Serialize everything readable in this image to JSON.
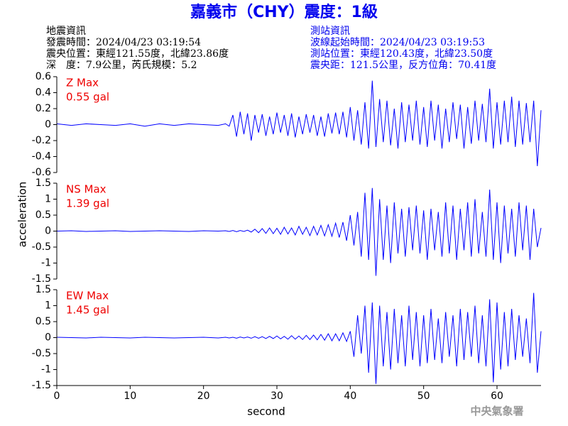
{
  "chart_data": {
    "type": "line",
    "title": "嘉義市（CHY）震度：1級",
    "info_left": [
      "地震資訊",
      "發震時間：2024/04/23 03:19:54",
      "震央位置：東經121.55度，北緯23.86度",
      "深　度：7.9公里，芮氏規模：5.2"
    ],
    "info_right": [
      "測站資訊",
      "波線起始時間：2024/04/23 03:19:53",
      "測站位置：東經120.43度，北緯23.50度",
      "震央距：121.5公里，反方位角：70.41度"
    ],
    "xlabel": "second",
    "ylabel": "acceleration",
    "credit": "中央氣象署",
    "xlim": [
      0,
      66
    ],
    "xticks": [
      0,
      10,
      20,
      30,
      40,
      50,
      60
    ],
    "x": [
      0,
      2,
      4,
      6,
      8,
      10,
      12,
      14,
      16,
      18,
      20,
      22,
      23,
      23.5,
      24,
      24.5,
      25,
      25.5,
      26,
      26.5,
      27,
      27.5,
      28,
      28.5,
      29,
      29.5,
      30,
      30.5,
      31,
      31.5,
      32,
      32.5,
      33,
      33.5,
      34,
      34.5,
      35,
      35.5,
      36,
      36.5,
      37,
      37.5,
      38,
      38.5,
      39,
      39.5,
      40,
      40.5,
      41,
      41.5,
      42,
      42.5,
      43,
      43.5,
      44,
      44.5,
      45,
      45.5,
      46,
      46.5,
      47,
      47.5,
      48,
      48.5,
      49,
      49.5,
      50,
      50.5,
      51,
      51.5,
      52,
      52.5,
      53,
      53.5,
      54,
      54.5,
      55,
      55.5,
      56,
      56.5,
      57,
      57.5,
      58,
      58.5,
      59,
      59.5,
      60,
      60.5,
      61,
      61.5,
      62,
      62.5,
      63,
      63.5,
      64,
      64.5,
      65,
      65.5,
      66
    ],
    "series": [
      {
        "name": "Z Max",
        "max_label": "0.55 gal",
        "color": "#0000ff",
        "label_color": "#ee0000",
        "ylim": [
          -0.6,
          0.6
        ],
        "yticks": [
          0.6,
          0.4,
          0.2,
          0,
          -0.2,
          -0.4,
          -0.6
        ],
        "values": [
          0.01,
          -0.01,
          0.01,
          0,
          -0.01,
          0.01,
          -0.02,
          0.01,
          -0.01,
          0.01,
          0,
          -0.01,
          0.01,
          -0.02,
          0.12,
          -0.15,
          0.16,
          -0.12,
          0.14,
          -0.2,
          0.12,
          -0.1,
          0.13,
          -0.14,
          0.1,
          -0.12,
          0.15,
          -0.1,
          0.12,
          -0.14,
          0.14,
          -0.16,
          0.1,
          -0.12,
          0.13,
          -0.1,
          0.12,
          -0.14,
          0.1,
          -0.15,
          0.14,
          -0.11,
          0.15,
          -0.12,
          0.16,
          -0.16,
          0.22,
          -0.2,
          0.18,
          -0.25,
          0.28,
          -0.3,
          0.55,
          -0.28,
          0.32,
          -0.22,
          0.3,
          -0.26,
          0.2,
          -0.3,
          0.28,
          -0.22,
          0.25,
          -0.2,
          0.3,
          -0.25,
          0.22,
          -0.28,
          0.3,
          -0.2,
          0.25,
          -0.3,
          0.2,
          -0.22,
          0.28,
          -0.18,
          0.25,
          -0.3,
          0.22,
          -0.24,
          0.3,
          -0.2,
          0.26,
          -0.22,
          0.45,
          -0.3,
          0.28,
          -0.25,
          0.3,
          -0.22,
          0.35,
          -0.28,
          0.3,
          -0.25,
          0.27,
          -0.22,
          0.3,
          -0.52,
          0.18
        ]
      },
      {
        "name": "NS Max",
        "max_label": "1.39 gal",
        "color": "#0000ff",
        "label_color": "#ee0000",
        "ylim": [
          -1.5,
          1.5
        ],
        "yticks": [
          1.5,
          1,
          0.5,
          0,
          -0.5,
          -1,
          -1.5
        ],
        "values": [
          0,
          0.01,
          -0.01,
          0,
          0.01,
          -0.01,
          0,
          0.01,
          0,
          -0.01,
          0.01,
          0,
          0.01,
          -0.01,
          0.02,
          -0.02,
          0.02,
          -0.01,
          0.03,
          -0.03,
          0.06,
          -0.05,
          0.08,
          -0.07,
          0.1,
          -0.08,
          0.09,
          -0.1,
          0.12,
          -0.09,
          0.1,
          -0.12,
          0.15,
          -0.1,
          0.12,
          -0.14,
          0.15,
          -0.12,
          0.18,
          -0.15,
          0.2,
          -0.16,
          0.25,
          -0.2,
          0.28,
          -0.3,
          0.5,
          -0.45,
          0.6,
          -0.8,
          1.2,
          -0.9,
          1.35,
          -1.4,
          1.0,
          -0.9,
          0.8,
          -1.0,
          0.9,
          -0.7,
          0.7,
          -0.8,
          0.75,
          -0.6,
          0.8,
          -0.7,
          0.65,
          -0.9,
          0.7,
          -0.6,
          0.6,
          -0.8,
          0.9,
          -0.7,
          0.8,
          -0.9,
          0.7,
          -0.6,
          0.9,
          -0.8,
          1.0,
          -0.7,
          0.6,
          -0.8,
          1.3,
          -0.9,
          0.9,
          -1.0,
          0.8,
          -0.7,
          0.7,
          -0.8,
          0.9,
          -0.6,
          0.8,
          -0.9,
          0.7,
          -0.5,
          0.1
        ]
      },
      {
        "name": "EW Max",
        "max_label": "1.45 gal",
        "color": "#0000ff",
        "label_color": "#ee0000",
        "ylim": [
          -1.5,
          1.5
        ],
        "yticks": [
          1.5,
          1,
          0.5,
          0,
          -0.5,
          -1,
          -1.5
        ],
        "values": [
          0.01,
          0,
          -0.01,
          0.01,
          0,
          -0.01,
          0.01,
          0,
          -0.01,
          0,
          0.01,
          -0.01,
          0.01,
          -0.01,
          0.01,
          -0.02,
          0.02,
          -0.01,
          0.02,
          -0.02,
          0.03,
          -0.02,
          0.03,
          -0.03,
          0.04,
          -0.03,
          0.05,
          -0.04,
          0.04,
          -0.05,
          0.06,
          -0.05,
          0.05,
          -0.06,
          0.07,
          -0.06,
          0.08,
          -0.07,
          0.1,
          -0.08,
          0.12,
          -0.1,
          0.12,
          -0.1,
          0.15,
          -0.12,
          0.2,
          -0.6,
          0.7,
          -0.5,
          1.0,
          -1.1,
          1.1,
          -1.45,
          1.0,
          -0.9,
          0.8,
          -1.0,
          0.9,
          -0.8,
          0.7,
          -0.9,
          1.0,
          -0.7,
          0.8,
          -0.9,
          0.7,
          -0.8,
          0.9,
          -0.7,
          0.6,
          -0.8,
          0.8,
          -0.6,
          0.7,
          -0.9,
          0.9,
          -0.7,
          0.8,
          -0.6,
          1.0,
          -0.8,
          0.7,
          -0.9,
          1.2,
          -1.4,
          1.1,
          -1.0,
          0.8,
          -0.9,
          0.9,
          -0.7,
          0.7,
          -0.6,
          0.6,
          -0.8,
          1.4,
          -1.1,
          0.2
        ]
      }
    ]
  }
}
